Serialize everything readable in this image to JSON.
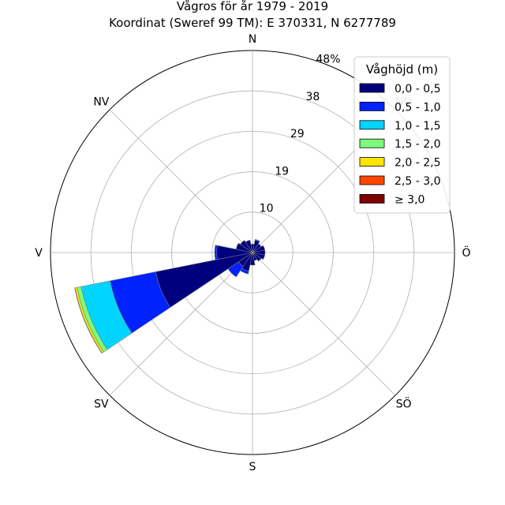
{
  "chart_data": {
    "type": "windrose",
    "title": "Vågros för år 1979 - 2019",
    "subtitle": "Koordinat (Sweref 99 TM): E 370331, N 6277789",
    "directions": [
      "N",
      "NV",
      "V",
      "SV",
      "S",
      "SÖ",
      "Ö",
      "NÖ"
    ],
    "radial_max": 48,
    "ring_labels": [
      "10",
      "19",
      "29",
      "38",
      "48%"
    ],
    "ring_values": [
      9.6,
      19.2,
      28.8,
      38.4,
      48
    ],
    "grid": true,
    "legend": {
      "title": "Våghöjd (m)",
      "placement": "top-right",
      "bins": [
        {
          "label": "0,0 - 0,5",
          "color": "#00007f"
        },
        {
          "label": "0,5 - 1,0",
          "color": "#0022ff"
        },
        {
          "label": "1,0 - 1,5",
          "color": "#00d4ff"
        },
        {
          "label": "1,5 - 2,0",
          "color": "#7bff7b"
        },
        {
          "label": "2,0 - 2,5",
          "color": "#ffe500"
        },
        {
          "label": "2,5 - 3,0",
          "color": "#ff4500"
        },
        {
          "label": "≥ 3,0",
          "color": "#7f0000"
        }
      ]
    },
    "sectors": [
      {
        "direction_deg": 0,
        "values": [
          2.0,
          0,
          0,
          0,
          0,
          0,
          0
        ]
      },
      {
        "direction_deg": 22.5,
        "values": [
          3.0,
          0.2,
          0,
          0,
          0,
          0,
          0
        ]
      },
      {
        "direction_deg": 45,
        "values": [
          2.5,
          0,
          0,
          0,
          0,
          0,
          0
        ]
      },
      {
        "direction_deg": 67.5,
        "values": [
          3.0,
          0,
          0,
          0,
          0,
          0,
          0
        ]
      },
      {
        "direction_deg": 90,
        "values": [
          3.0,
          0,
          0,
          0,
          0,
          0,
          0
        ]
      },
      {
        "direction_deg": 112.5,
        "values": [
          3.0,
          0,
          0,
          0,
          0,
          0,
          0
        ]
      },
      {
        "direction_deg": 135,
        "values": [
          2.5,
          0,
          0,
          0,
          0,
          0,
          0
        ]
      },
      {
        "direction_deg": 157.5,
        "values": [
          2.0,
          0,
          0,
          0,
          0,
          0,
          0
        ]
      },
      {
        "direction_deg": 180,
        "values": [
          3.0,
          0,
          0,
          0,
          0,
          0,
          0
        ]
      },
      {
        "direction_deg": 202.5,
        "values": [
          4.5,
          0.7,
          0,
          0,
          0,
          0,
          0
        ]
      },
      {
        "direction_deg": 225,
        "values": [
          4.0,
          3.0,
          0,
          0,
          0,
          0,
          0
        ]
      },
      {
        "direction_deg": 247.5,
        "values": [
          23.5,
          11.0,
          7.0,
          1.0,
          0.5,
          0.1,
          0
        ]
      },
      {
        "direction_deg": 270,
        "values": [
          8.5,
          0.5,
          0,
          0,
          0,
          0,
          0
        ]
      },
      {
        "direction_deg": 292.5,
        "values": [
          4.0,
          0,
          0,
          0,
          0,
          0,
          0
        ]
      },
      {
        "direction_deg": 315,
        "values": [
          3.5,
          0,
          0,
          0,
          0,
          0,
          0
        ]
      },
      {
        "direction_deg": 337.5,
        "values": [
          3.0,
          0,
          0,
          0,
          0,
          0,
          0
        ]
      }
    ]
  }
}
